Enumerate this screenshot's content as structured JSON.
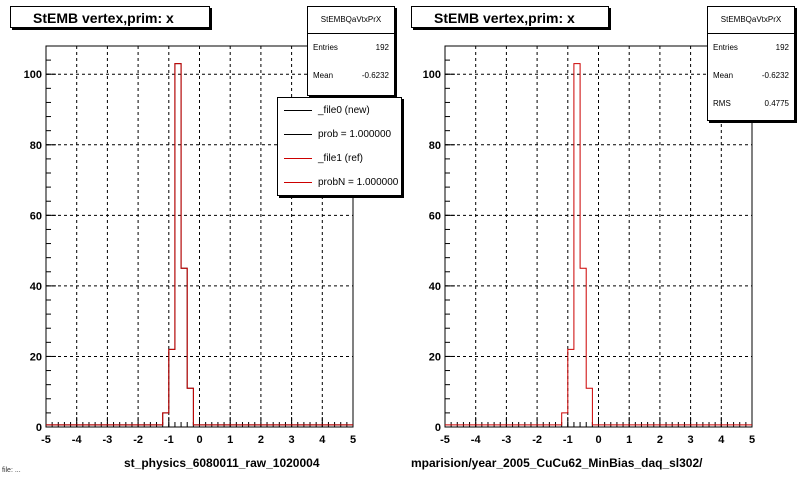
{
  "chart_data": [
    {
      "type": "bar",
      "title": "StEMB  vertex,prim: x",
      "xlabel": "st_physics_6080011_raw_1020004",
      "ylabel": "",
      "xlim": [
        -5,
        5
      ],
      "ylim": [
        0,
        108
      ],
      "x_ticks": [
        "-5",
        "-4",
        "-3",
        "-2",
        "-1",
        "0",
        "1",
        "2",
        "3",
        "4",
        "5"
      ],
      "y_ticks": [
        "0",
        "20",
        "40",
        "60",
        "80",
        "100"
      ],
      "grid": true,
      "bin_width": 0.2,
      "x": [
        -1.1,
        -0.9,
        -0.7,
        -0.5,
        -0.3
      ],
      "series": [
        {
          "name": "_file0 (new)",
          "color": "#000000",
          "values": [
            4,
            22,
            103,
            45,
            11
          ]
        },
        {
          "name": "_file1 (ref)",
          "color": "#cc0000",
          "values": [
            4,
            22,
            103,
            45,
            11
          ]
        }
      ]
    },
    {
      "type": "bar",
      "title": "StEMB  vertex,prim: x",
      "xlabel": "mparision/year_2005_CuCu62_MinBias_daq_sl302/",
      "ylabel": "",
      "xlim": [
        -5,
        5
      ],
      "ylim": [
        0,
        108
      ],
      "x_ticks": [
        "-5",
        "-4",
        "-3",
        "-2",
        "-1",
        "0",
        "1",
        "2",
        "3",
        "4",
        "5"
      ],
      "y_ticks": [
        "0",
        "20",
        "40",
        "60",
        "80",
        "100"
      ],
      "grid": true,
      "bin_width": 0.2,
      "x": [
        -1.1,
        -0.9,
        -0.7,
        -0.5,
        -0.3
      ],
      "series": [
        {
          "name": "",
          "color": "#cc0000",
          "values": [
            4,
            22,
            103,
            45,
            11
          ]
        }
      ]
    }
  ],
  "left_stats": {
    "header": "StEMBQaVtxPrX",
    "entries_label": "Entries",
    "entries_value": "192",
    "mean_label": "Mean",
    "mean_value": "-0.6232"
  },
  "right_stats": {
    "header": "StEMBQaVtxPrX",
    "entries_label": "Entries",
    "entries_value": "192",
    "mean_label": "Mean",
    "mean_value": "-0.6232",
    "rms_label": "RMS",
    "rms_value": "0.4775"
  },
  "legend": {
    "items": [
      {
        "label": "_file0 (new)",
        "color": "#000000"
      },
      {
        "label": "prob = 1.000000",
        "color": "#000000"
      },
      {
        "label": "_file1 (ref)",
        "color": "#cc0000"
      },
      {
        "label": "probN = 1.000000",
        "color": "#cc0000"
      }
    ]
  },
  "corner_text": "file: ... "
}
